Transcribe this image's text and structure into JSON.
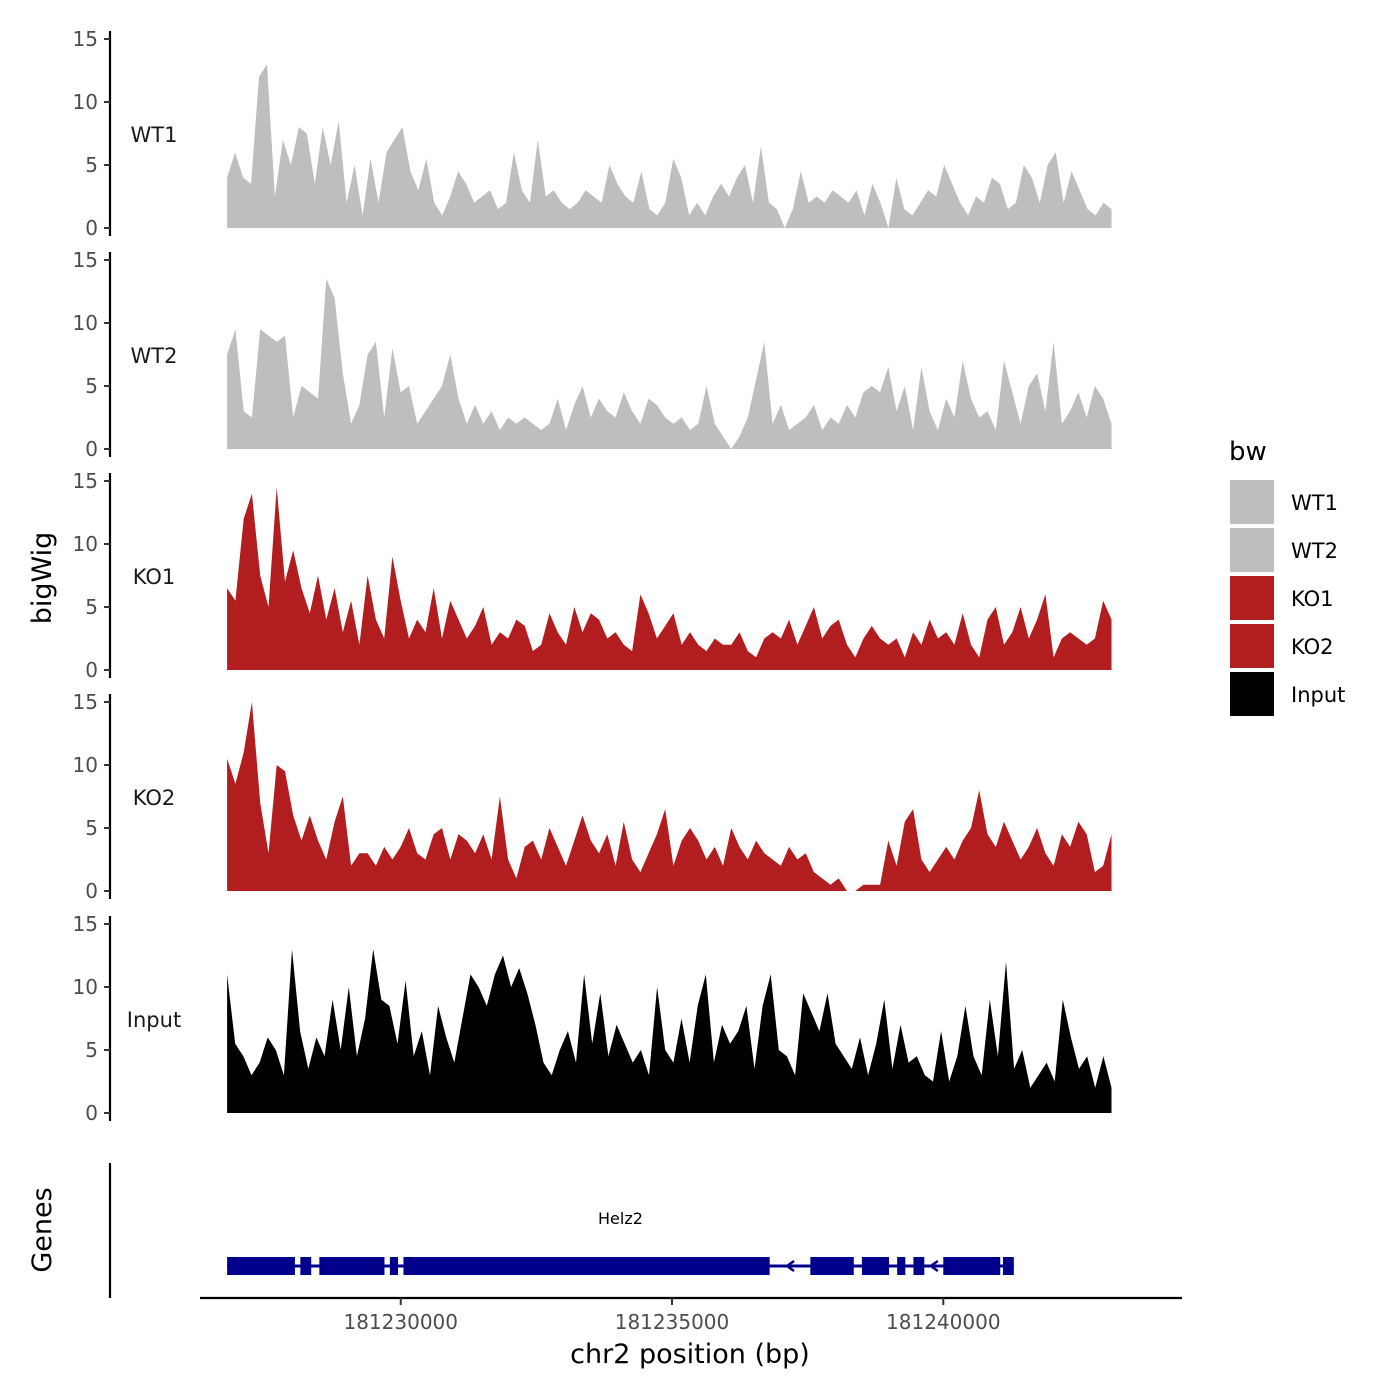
{
  "chart_data": {
    "type": "area",
    "title": "",
    "ylabel": "bigWig",
    "xlabel": "chr2 position (bp)",
    "xlim": [
      181226300,
      181244400
    ],
    "ylim": [
      0,
      15
    ],
    "y_ticks": [
      0,
      5,
      10,
      15
    ],
    "x_ticks": [
      181230000,
      181235000,
      181240000
    ],
    "x_tick_labels": [
      "181230000",
      "181235000",
      "181240000"
    ],
    "genes_track_label": "Genes",
    "legend": {
      "title": "bw",
      "position": "right",
      "entries": [
        {
          "name": "WT1",
          "color": "#bebebe"
        },
        {
          "name": "WT2",
          "color": "#bebebe"
        },
        {
          "name": "KO1",
          "color": "#b21d1f"
        },
        {
          "name": "KO2",
          "color": "#b21d1f"
        },
        {
          "name": "Input",
          "color": "#000000"
        }
      ]
    },
    "series": [
      {
        "name": "WT1",
        "color": "#bebebe",
        "x_start": 181226800,
        "x_end": 181243100,
        "values": [
          4,
          6,
          4,
          3.5,
          12,
          13,
          2.5,
          7,
          5,
          8,
          7.5,
          3.5,
          8,
          5,
          8.5,
          2,
          5,
          1,
          5.5,
          2,
          6,
          7,
          8,
          4.5,
          3,
          5.5,
          2,
          1,
          2.5,
          4.5,
          3.5,
          2,
          2.5,
          3,
          1.5,
          2,
          6,
          3,
          2,
          7,
          2.5,
          3,
          2,
          1.5,
          2,
          3,
          2.5,
          2,
          5,
          3.5,
          2.5,
          2,
          4.5,
          1.5,
          1,
          2,
          5.5,
          4,
          1,
          2,
          1,
          2.5,
          3.5,
          2.5,
          4,
          5,
          2,
          6.5,
          2,
          1.5,
          0,
          1.5,
          4.5,
          2,
          2.5,
          2,
          3,
          2.5,
          2,
          3,
          1,
          3.5,
          2,
          0,
          4,
          1.5,
          1,
          2,
          3,
          2.5,
          5,
          3.5,
          2,
          1,
          2.5,
          2,
          4,
          3.5,
          1.5,
          2,
          5,
          4,
          2,
          5,
          6,
          2,
          4.5,
          3,
          1.5,
          1,
          2,
          1.5
        ]
      },
      {
        "name": "WT2",
        "color": "#bebebe",
        "x_start": 181226800,
        "x_end": 181243100,
        "values": [
          7.5,
          9.5,
          3,
          2.5,
          9.5,
          9,
          8.5,
          9,
          2.5,
          5,
          4.5,
          4,
          13.5,
          12,
          6,
          2,
          3.5,
          7.5,
          8.5,
          2.5,
          8,
          4.5,
          5,
          2,
          3,
          4,
          5,
          7.5,
          4,
          2,
          3.5,
          2,
          3,
          1.5,
          2.5,
          2,
          2.5,
          2,
          1.5,
          2,
          4,
          1.5,
          3.5,
          5,
          2.5,
          4,
          3,
          2.5,
          4.5,
          3,
          2,
          4,
          3.5,
          2.5,
          2,
          2.5,
          1.5,
          2,
          5,
          2,
          1,
          0,
          1,
          2.5,
          5.5,
          8.5,
          2,
          3.5,
          1.5,
          2,
          2.5,
          3.5,
          1.5,
          2.5,
          2,
          3.5,
          2.5,
          4.5,
          5,
          4.5,
          6.5,
          3,
          5,
          1.5,
          6.5,
          3,
          1.5,
          4,
          2.5,
          7,
          4,
          2.5,
          3,
          1.5,
          7,
          4.5,
          2,
          5,
          6,
          3,
          8.5,
          2,
          3,
          4.5,
          2.5,
          5,
          4,
          2
        ]
      },
      {
        "name": "KO1",
        "color": "#b21d1f",
        "x_start": 181226800,
        "x_end": 181243100,
        "values": [
          6.5,
          5.5,
          12,
          14,
          7.5,
          5,
          14.5,
          7,
          9.5,
          6.5,
          4.5,
          7.5,
          4,
          6.5,
          3,
          5.5,
          2,
          7.5,
          4,
          2.5,
          9,
          5.5,
          2.5,
          4,
          3,
          6.5,
          2.5,
          5.5,
          4,
          2.5,
          3.5,
          5,
          2,
          3,
          2.5,
          4,
          3.5,
          1.5,
          2,
          4.5,
          3,
          2,
          5,
          3,
          4.5,
          4,
          2.5,
          3,
          2,
          1.5,
          6,
          4.5,
          2.5,
          3.5,
          4.5,
          2,
          3,
          2,
          1.5,
          2.5,
          2,
          2,
          3,
          1.5,
          1,
          2.5,
          3,
          2.5,
          4,
          2,
          3.5,
          5,
          2.5,
          3.5,
          4,
          2,
          1,
          2.5,
          3.5,
          2.5,
          2,
          2.5,
          1,
          3,
          2,
          4,
          2.5,
          3,
          2,
          4.5,
          2,
          1,
          4,
          5,
          2,
          3,
          5,
          2.5,
          4,
          6,
          1,
          2.5,
          3,
          2.5,
          2,
          2.5,
          5.5,
          4
        ]
      },
      {
        "name": "KO2",
        "color": "#b21d1f",
        "x_start": 181226800,
        "x_end": 181243100,
        "values": [
          10.5,
          8.5,
          11,
          15,
          7,
          3,
          10,
          9.5,
          6,
          4,
          6,
          4,
          2.5,
          5.5,
          7.5,
          2,
          3,
          3,
          2,
          3.5,
          2.5,
          3.5,
          5,
          3,
          2.5,
          4.5,
          5,
          2.5,
          4.5,
          4,
          3,
          4.5,
          2.5,
          7.5,
          2.5,
          1,
          3.5,
          4,
          2.5,
          5,
          3.5,
          2,
          4,
          6,
          4,
          3,
          4.5,
          2,
          5.5,
          2.5,
          1.5,
          3,
          4.5,
          6.5,
          2,
          4,
          5,
          4,
          2.5,
          3.5,
          2,
          5,
          3.5,
          2.5,
          4,
          3,
          2.5,
          2,
          3.5,
          2.5,
          3,
          1.5,
          1,
          0.5,
          1,
          0,
          0,
          0.5,
          0.5,
          0.5,
          4,
          2,
          5.5,
          6.5,
          2.5,
          1.5,
          2.5,
          3.5,
          2.5,
          4,
          5,
          8,
          4.5,
          3.5,
          5.5,
          4,
          2.5,
          3.5,
          5,
          3,
          2,
          4.5,
          3.5,
          5.5,
          4.5,
          1.5,
          2,
          4.5
        ]
      },
      {
        "name": "Input",
        "color": "#000000",
        "x_start": 181226800,
        "x_end": 181243100,
        "values": [
          11,
          5.5,
          4.5,
          3,
          4,
          6,
          5,
          3,
          13,
          6.5,
          3.5,
          6,
          4.5,
          9,
          5,
          10,
          4.5,
          7.5,
          13,
          9,
          8.5,
          5.5,
          10.5,
          4.5,
          6.5,
          3,
          8.5,
          6,
          4,
          7.5,
          11,
          10,
          8.5,
          11,
          12.5,
          10,
          11.5,
          9.5,
          7,
          4,
          3,
          5,
          6.5,
          4,
          11,
          5.5,
          9.5,
          4.5,
          7,
          5.5,
          4,
          5,
          3,
          10,
          5,
          4,
          7.5,
          4,
          8.5,
          11,
          4,
          7,
          5.5,
          6.5,
          8.5,
          3.5,
          8.5,
          11,
          5,
          4.5,
          3,
          9.5,
          8,
          6.5,
          9.5,
          5.5,
          4.5,
          3.5,
          6,
          3,
          5.5,
          9,
          3.5,
          7,
          4,
          4.5,
          3,
          2.5,
          6.5,
          2.5,
          4.5,
          8.5,
          4.5,
          3,
          9,
          4.5,
          12,
          3.5,
          5,
          2,
          3,
          4,
          2.5,
          9,
          6,
          3.5,
          4.5,
          2,
          4.5,
          2
        ]
      }
    ],
    "gene": {
      "name": "Helz2",
      "strand": "-",
      "color": "#00008b",
      "start": 181226800,
      "end": 181241300,
      "exons": [
        [
          181226800,
          181228050
        ],
        [
          181228150,
          181228350
        ],
        [
          181228500,
          181229700
        ],
        [
          181229800,
          181229950
        ],
        [
          181230050,
          181236800
        ],
        [
          181237550,
          181238350
        ],
        [
          181238500,
          181239000
        ],
        [
          181239150,
          181239300
        ],
        [
          181239450,
          181239650
        ],
        [
          181240000,
          181241050
        ],
        [
          181241100,
          181241300
        ]
      ]
    }
  }
}
